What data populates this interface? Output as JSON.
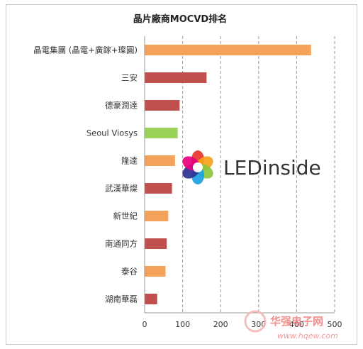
{
  "chart_data": {
    "type": "bar",
    "orientation": "horizontal",
    "title": "晶片廠商MOCVD排名",
    "categories": [
      "晶電集團 (晶電+廣鎵+璨圓)",
      "三安",
      "德豪潤達",
      "Seoul Viosys",
      "隆達",
      "武漢華燦",
      "新世紀",
      "南通同方",
      "泰谷",
      "湖南華磊"
    ],
    "values": [
      438,
      163,
      92,
      87,
      80,
      72,
      62,
      58,
      55,
      33
    ],
    "colors": [
      "#f5a25a",
      "#c0504d",
      "#c0504d",
      "#9bd35a",
      "#f5a25a",
      "#c0504d",
      "#f5a25a",
      "#c0504d",
      "#f5a25a",
      "#c0504d"
    ],
    "xlim": [
      0,
      500
    ],
    "xticks": [
      0,
      100,
      200,
      300,
      400,
      500
    ],
    "grid": "vertical-dashed",
    "legend": "none"
  },
  "watermark": {
    "logo_text": "LEDinside",
    "site_name": "华强电子网",
    "site_url": "www.hqew.com",
    "logo_colors": [
      "#e8332a",
      "#f7a21b",
      "#8dc63f",
      "#1ba1e2",
      "#2e3192",
      "#e6007e"
    ]
  }
}
